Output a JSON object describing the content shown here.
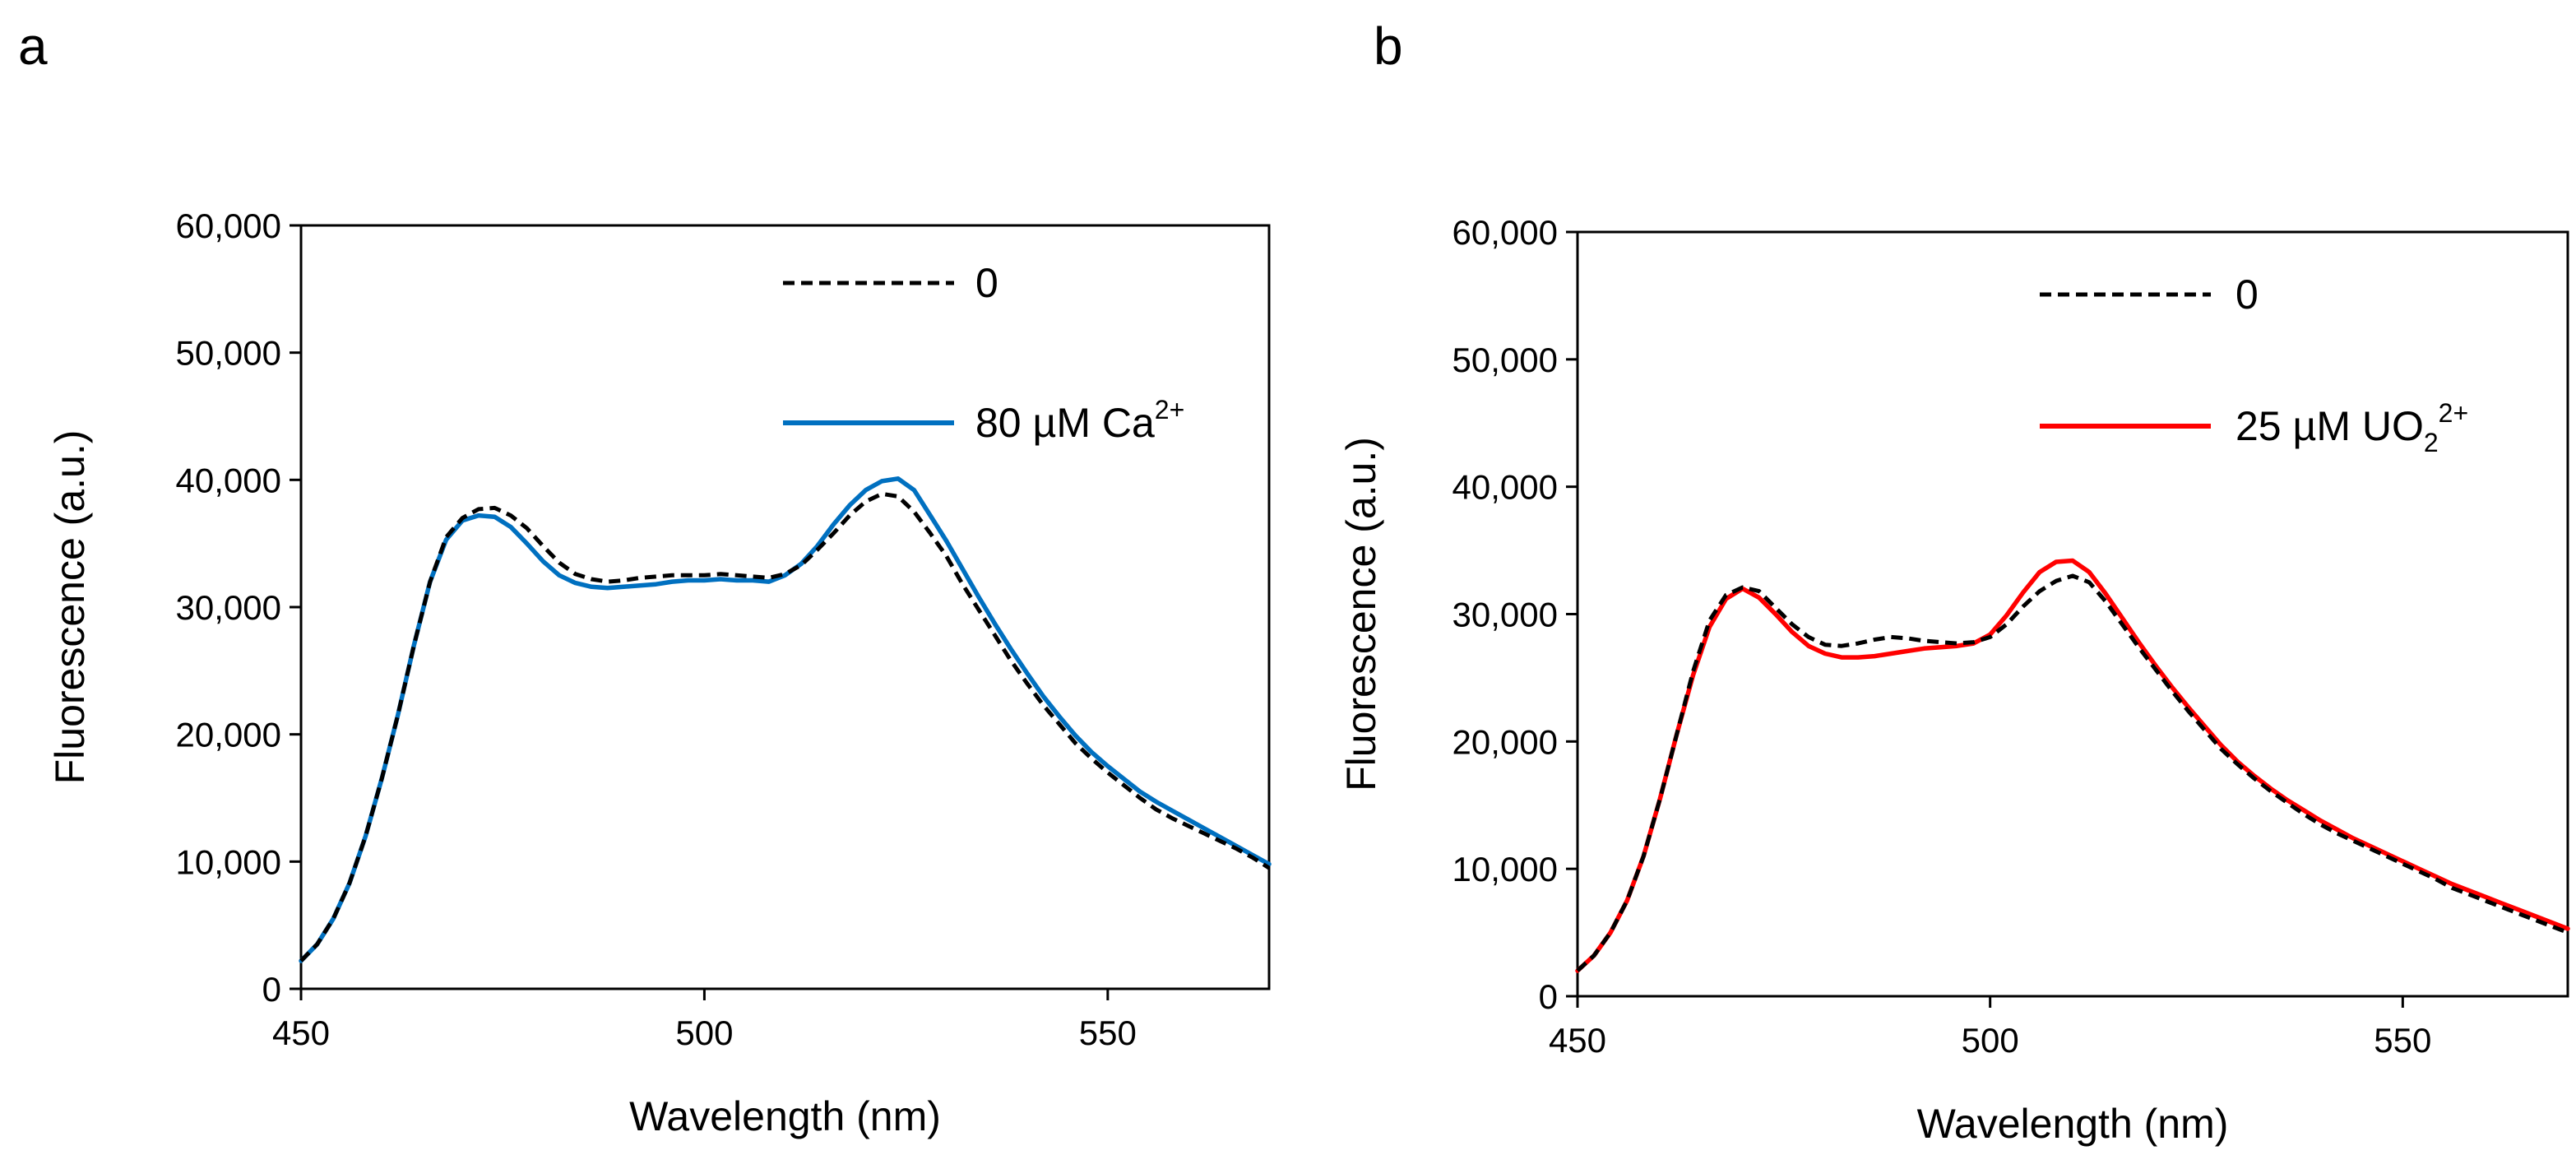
{
  "chart_data": [
    {
      "panel_label": "a",
      "type": "line",
      "xlabel": "Wavelength (nm)",
      "ylabel": "Fluorescence (a.u.)",
      "xlim": [
        450,
        570
      ],
      "ylim": [
        0,
        60000
      ],
      "xticks": [
        450,
        500,
        550
      ],
      "xtick_labels": [
        "450",
        "500",
        "550"
      ],
      "yticks": [
        0,
        10000,
        20000,
        30000,
        40000,
        50000,
        60000
      ],
      "ytick_labels": [
        "0",
        "10,000",
        "20,000",
        "30,000",
        "40,000",
        "50,000",
        "60,000"
      ],
      "legend_position": "top-right",
      "series": [
        {
          "name": "0",
          "label_main": "0",
          "label_sub": "",
          "label_sup": "",
          "color": "#000000",
          "style": "dashed",
          "x": [
            450,
            452,
            454,
            456,
            458,
            460,
            462,
            464,
            466,
            468,
            470,
            472,
            474,
            476,
            478,
            480,
            482,
            484,
            486,
            488,
            490,
            492,
            494,
            496,
            498,
            500,
            502,
            504,
            506,
            508,
            510,
            512,
            514,
            516,
            518,
            520,
            522,
            524,
            526,
            528,
            530,
            532,
            534,
            536,
            538,
            540,
            542,
            544,
            546,
            548,
            550,
            552,
            554,
            556,
            558,
            560,
            562,
            564,
            566,
            568,
            570
          ],
          "values": [
            2200,
            3500,
            5500,
            8300,
            12000,
            16500,
            21500,
            27000,
            32000,
            35500,
            37000,
            37700,
            37800,
            37200,
            36200,
            34800,
            33500,
            32600,
            32200,
            32000,
            32100,
            32300,
            32400,
            32500,
            32500,
            32500,
            32600,
            32500,
            32400,
            32300,
            32600,
            33300,
            34500,
            35800,
            37200,
            38300,
            38900,
            38700,
            37500,
            35800,
            34000,
            31800,
            29800,
            27800,
            25800,
            24000,
            22300,
            20800,
            19300,
            18100,
            17000,
            16000,
            15000,
            14100,
            13400,
            12800,
            12200,
            11600,
            11000,
            10300,
            9500
          ]
        },
        {
          "name": "80 µM Ca2+",
          "label_main": "80 µM Ca",
          "label_sub": "",
          "label_sup": "2+",
          "color": "#0070C0",
          "style": "solid",
          "x": [
            450,
            452,
            454,
            456,
            458,
            460,
            462,
            464,
            466,
            468,
            470,
            472,
            474,
            476,
            478,
            480,
            482,
            484,
            486,
            488,
            490,
            492,
            494,
            496,
            498,
            500,
            502,
            504,
            506,
            508,
            510,
            512,
            514,
            516,
            518,
            520,
            522,
            524,
            526,
            528,
            530,
            532,
            534,
            536,
            538,
            540,
            542,
            544,
            546,
            548,
            550,
            552,
            554,
            556,
            558,
            560,
            562,
            564,
            566,
            568,
            570
          ],
          "values": [
            2200,
            3500,
            5500,
            8300,
            12000,
            16500,
            21500,
            27000,
            32000,
            35300,
            36800,
            37200,
            37100,
            36300,
            35000,
            33600,
            32500,
            31900,
            31600,
            31500,
            31600,
            31700,
            31800,
            32000,
            32100,
            32100,
            32200,
            32100,
            32100,
            32000,
            32500,
            33400,
            34800,
            36500,
            38000,
            39200,
            39900,
            40100,
            39200,
            37200,
            35200,
            33000,
            30800,
            28700,
            26700,
            24800,
            23000,
            21400,
            19900,
            18600,
            17500,
            16500,
            15500,
            14700,
            14000,
            13300,
            12600,
            11900,
            11200,
            10500,
            9800
          ]
        }
      ]
    },
    {
      "panel_label": "b",
      "type": "line",
      "xlabel": "Wavelength (nm)",
      "ylabel": "Fluorescence (a.u.)",
      "xlim": [
        450,
        570
      ],
      "ylim": [
        0,
        60000
      ],
      "xticks": [
        450,
        500,
        550
      ],
      "xtick_labels": [
        "450",
        "500",
        "550"
      ],
      "yticks": [
        0,
        10000,
        20000,
        30000,
        40000,
        50000,
        60000
      ],
      "ytick_labels": [
        "0",
        "10,000",
        "20,000",
        "30,000",
        "40,000",
        "50,000",
        "60,000"
      ],
      "legend_position": "top-right",
      "series": [
        {
          "name": "0",
          "label_main": "0",
          "label_sub": "",
          "label_sup": "",
          "color": "#000000",
          "style": "dashed",
          "x": [
            450,
            452,
            454,
            456,
            458,
            460,
            462,
            464,
            466,
            468,
            470,
            472,
            474,
            476,
            478,
            480,
            482,
            484,
            486,
            488,
            490,
            492,
            494,
            496,
            498,
            500,
            502,
            504,
            506,
            508,
            510,
            512,
            514,
            516,
            518,
            520,
            522,
            524,
            526,
            528,
            530,
            532,
            534,
            536,
            538,
            540,
            542,
            544,
            546,
            548,
            550,
            552,
            554,
            556,
            558,
            560,
            562,
            564,
            566,
            568,
            570
          ],
          "values": [
            2000,
            3200,
            5000,
            7500,
            11000,
            15500,
            20500,
            25500,
            29500,
            31500,
            32100,
            31800,
            30500,
            29200,
            28200,
            27600,
            27500,
            27700,
            28000,
            28200,
            28100,
            27900,
            27800,
            27700,
            27800,
            28200,
            29200,
            30600,
            31800,
            32600,
            33000,
            32500,
            31000,
            29200,
            27400,
            25700,
            24000,
            22400,
            20900,
            19400,
            18200,
            17100,
            16100,
            15200,
            14300,
            13500,
            12800,
            12200,
            11600,
            11000,
            10400,
            9800,
            9200,
            8500,
            8000,
            7500,
            7000,
            6500,
            6000,
            5500,
            5000
          ]
        },
        {
          "name": "25 µM UO22+",
          "label_main": "25 µM UO",
          "label_sub": "2",
          "label_sup": "2+",
          "color": "#FF0000",
          "style": "solid",
          "x": [
            450,
            452,
            454,
            456,
            458,
            460,
            462,
            464,
            466,
            468,
            470,
            472,
            474,
            476,
            478,
            480,
            482,
            484,
            486,
            488,
            490,
            492,
            494,
            496,
            498,
            500,
            502,
            504,
            506,
            508,
            510,
            512,
            514,
            516,
            518,
            520,
            522,
            524,
            526,
            528,
            530,
            532,
            534,
            536,
            538,
            540,
            542,
            544,
            546,
            548,
            550,
            552,
            554,
            556,
            558,
            560,
            562,
            564,
            566,
            568,
            570
          ],
          "values": [
            2000,
            3200,
            5000,
            7500,
            11000,
            15500,
            20500,
            25200,
            29000,
            31200,
            32000,
            31300,
            30000,
            28600,
            27500,
            26900,
            26600,
            26600,
            26700,
            26900,
            27100,
            27300,
            27400,
            27500,
            27700,
            28400,
            29900,
            31700,
            33300,
            34100,
            34200,
            33300,
            31600,
            29700,
            27800,
            26000,
            24300,
            22700,
            21200,
            19700,
            18400,
            17300,
            16300,
            15400,
            14600,
            13800,
            13100,
            12400,
            11800,
            11200,
            10600,
            10000,
            9400,
            8800,
            8300,
            7800,
            7300,
            6800,
            6300,
            5800,
            5300
          ]
        }
      ]
    }
  ]
}
